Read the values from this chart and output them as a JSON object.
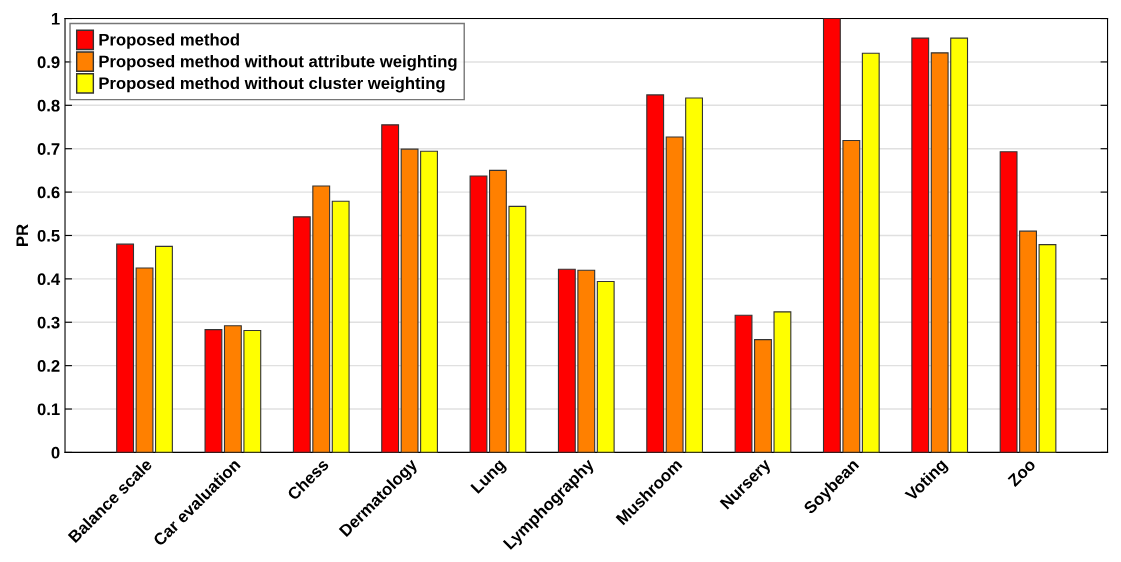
{
  "chart_data": {
    "type": "bar",
    "ylabel": "PR",
    "categories": [
      "Balance scale",
      "Car evaluation",
      "Chess",
      "Dermatology",
      "Lung",
      "Lymphography",
      "Mushroom",
      "Nursery",
      "Soybean",
      "Voting",
      "Zoo"
    ],
    "series": [
      {
        "name": "Proposed method",
        "color": "#ff0000",
        "values": [
          0.48,
          0.283,
          0.543,
          0.755,
          0.637,
          0.422,
          0.824,
          0.316,
          1.0,
          0.955,
          0.693
        ]
      },
      {
        "name": "Proposed method without attribute weighting",
        "color": "#ff8000",
        "values": [
          0.425,
          0.292,
          0.614,
          0.699,
          0.65,
          0.42,
          0.727,
          0.26,
          0.719,
          0.921,
          0.51
        ]
      },
      {
        "name": "Proposed method without cluster weighting",
        "color": "#ffff00",
        "values": [
          0.475,
          0.281,
          0.579,
          0.694,
          0.567,
          0.394,
          0.817,
          0.324,
          0.92,
          0.955,
          0.479
        ]
      }
    ],
    "ylim": [
      0,
      1
    ],
    "yticks": [
      0,
      0.1,
      0.2,
      0.3,
      0.4,
      0.5,
      0.6,
      0.7,
      0.8,
      0.9,
      1
    ],
    "grid": "y",
    "legend": "top left"
  }
}
